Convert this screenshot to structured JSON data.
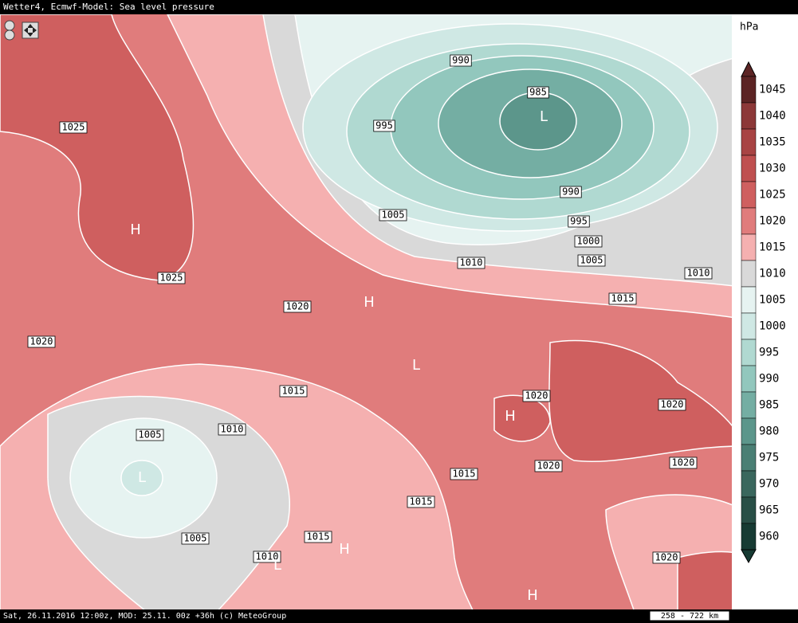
{
  "header": {
    "title": "Wetter4, Ecmwf-Model: Sea level pressure"
  },
  "legend": {
    "unit": "hPa",
    "levels": [
      {
        "value": 1045,
        "color": "#5c2424"
      },
      {
        "value": 1040,
        "color": "#8c3838"
      },
      {
        "value": 1035,
        "color": "#a84444"
      },
      {
        "value": 1030,
        "color": "#bf5050"
      },
      {
        "value": 1025,
        "color": "#cf5f5f"
      },
      {
        "value": 1020,
        "color": "#e07c7c"
      },
      {
        "value": 1015,
        "color": "#f5b0b0"
      },
      {
        "value": 1010,
        "color": "#d9d9d9"
      },
      {
        "value": 1005,
        "color": "#e6f3f1"
      },
      {
        "value": 1000,
        "color": "#cfe8e4"
      },
      {
        "value": 995,
        "color": "#b0d9d1"
      },
      {
        "value": 990,
        "color": "#92c7bd"
      },
      {
        "value": 985,
        "color": "#74aea3"
      },
      {
        "value": 980,
        "color": "#5c968b"
      },
      {
        "value": 975,
        "color": "#4a7f74"
      },
      {
        "value": 970,
        "color": "#3a675d"
      },
      {
        "value": 965,
        "color": "#294f46"
      },
      {
        "value": 960,
        "color": "#173b33"
      }
    ]
  },
  "isobar_labels": [
    "1025",
    "1025",
    "1020",
    "1020",
    "1015",
    "1010",
    "1005",
    "1005",
    "1010",
    "1015",
    "1015",
    "1015",
    "1020",
    "1020",
    "1020",
    "1020",
    "1020",
    "1015",
    "1010",
    "1005",
    "1010",
    "1000",
    "995",
    "990",
    "985",
    "990",
    "995",
    "1005"
  ],
  "centers": [
    "H",
    "L",
    "L",
    "H",
    "L",
    "H",
    "H",
    "L",
    "H"
  ],
  "footer": {
    "text": "Sat, 26.11.2016 12:00z, MOD: 25.11. 00z +36h (c) MeteoGroup",
    "scale": "258 - 722 km"
  }
}
